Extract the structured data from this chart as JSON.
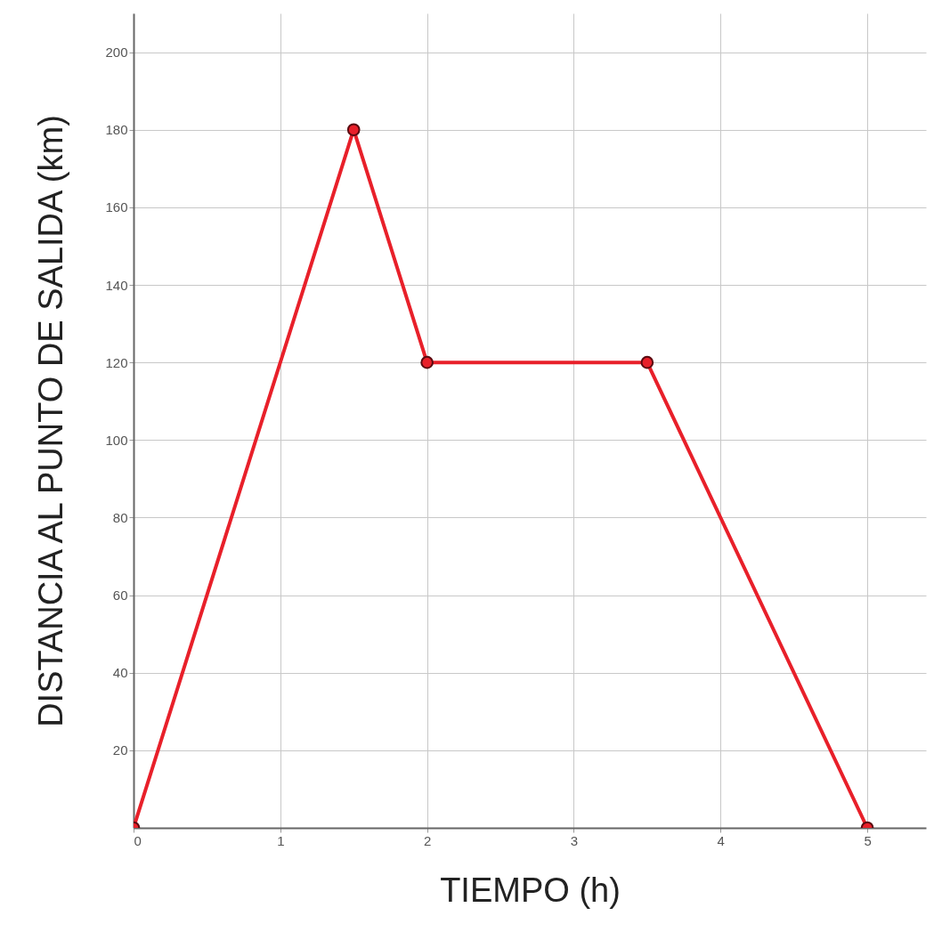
{
  "chart_data": {
    "type": "line",
    "xlabel": "TIEMPO (h)",
    "ylabel": "DISTANCIA AL PUNTO DE SALIDA (km)",
    "x": [
      0,
      1.5,
      2,
      3.5,
      5
    ],
    "series": [
      {
        "color": "#e8202a",
        "values": [
          0,
          180,
          120,
          120,
          0
        ]
      }
    ],
    "xlim": [
      0,
      5.4
    ],
    "ylim": [
      0,
      210
    ],
    "xticks": [
      0,
      1,
      2,
      3,
      4,
      5
    ],
    "yticks": [
      20,
      40,
      60,
      80,
      100,
      120,
      140,
      160,
      180,
      200
    ],
    "grid": true,
    "marker": "circle",
    "line_style": "solid"
  }
}
